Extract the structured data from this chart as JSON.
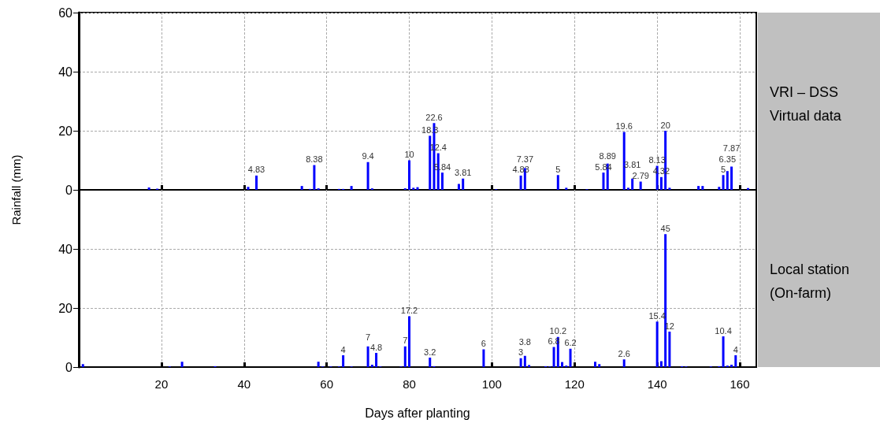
{
  "chart_data": [
    {
      "type": "bar",
      "annotations": [
        "VRI – DSS Virtual data"
      ],
      "ylabel": "Rainfall (mm)",
      "color": "#0000ff",
      "x": [
        17,
        19,
        41,
        43,
        54,
        56,
        57,
        58,
        63,
        64,
        66,
        70,
        71,
        79,
        80,
        81,
        82,
        85,
        86,
        87,
        88,
        92,
        93,
        101,
        107,
        108,
        116,
        118,
        123,
        127,
        128,
        132,
        133,
        134,
        136,
        140,
        141,
        142,
        143,
        150,
        151,
        155,
        156,
        157,
        158,
        162
      ],
      "values": [
        0.8,
        0.4,
        1.0,
        4.83,
        1.3,
        0.3,
        8.38,
        0.5,
        0.3,
        0.3,
        1.3,
        9.4,
        0.5,
        0.5,
        10,
        0.7,
        0.9,
        18.3,
        22.6,
        12.4,
        5.84,
        2.0,
        3.81,
        0.2,
        4.83,
        7.37,
        5,
        0.7,
        0.2,
        5.84,
        8.89,
        19.6,
        0.7,
        3.81,
        2.79,
        8.13,
        4.32,
        20,
        0.7,
        1.3,
        1.3,
        1.0,
        5,
        6.35,
        7.87,
        0.6
      ],
      "value_labels": [
        null,
        null,
        null,
        "4.83",
        null,
        null,
        "8.38",
        null,
        null,
        null,
        null,
        "9.4",
        null,
        null,
        "10",
        null,
        null,
        "18.3",
        "22.6",
        "12.4",
        "5.84",
        null,
        "3.81",
        null,
        "4.83",
        "7.37",
        "5",
        null,
        null,
        "5.84",
        "8.89",
        "19.6",
        null,
        "3.81",
        "2.79",
        "8.13",
        "4.32",
        "20",
        null,
        null,
        null,
        null,
        "5",
        "6.35",
        "7.87",
        null
      ],
      "xlim": [
        0,
        164
      ],
      "xticks": [
        20,
        40,
        60,
        80,
        100,
        120,
        140,
        160
      ],
      "ylim": [
        0,
        60
      ],
      "yticks": [
        0,
        20,
        40,
        60
      ],
      "grid": true,
      "tick_labels": "y"
    },
    {
      "type": "bar",
      "annotations": [
        "Local station (On-farm)"
      ],
      "xlabel": "Days after planting",
      "color": "#0000ff",
      "x": [
        1,
        22,
        25,
        33,
        58,
        59,
        61,
        63,
        64,
        66,
        70,
        71,
        72,
        73,
        78,
        79,
        80,
        85,
        86,
        98,
        107,
        108,
        109,
        113,
        114,
        115,
        116,
        117,
        118,
        119,
        125,
        126,
        132,
        140,
        141,
        142,
        143,
        146,
        147,
        153,
        155,
        156,
        157,
        158,
        159
      ],
      "values": [
        1.0,
        0.2,
        1.8,
        0.3,
        1.8,
        0.2,
        0.2,
        0.2,
        4,
        0.2,
        7,
        0.8,
        4.8,
        0.2,
        0.2,
        7,
        17.2,
        3.2,
        0.3,
        6,
        3,
        3.8,
        0.7,
        0.3,
        0.2,
        6.8,
        10.2,
        1.7,
        0.5,
        6.2,
        1.8,
        1.0,
        2.6,
        15.4,
        2.0,
        45,
        12,
        0.3,
        0.2,
        0.2,
        0.3,
        10.4,
        0.5,
        0.8,
        4
      ],
      "value_labels": [
        null,
        null,
        null,
        null,
        null,
        null,
        null,
        null,
        "4",
        null,
        "7",
        null,
        "4.8",
        null,
        null,
        "7",
        "17.2",
        "3.2",
        null,
        "6",
        "3",
        "3.8",
        null,
        null,
        null,
        "6.8",
        "10.2",
        null,
        null,
        "6.2",
        null,
        null,
        "2.6",
        "15.4",
        null,
        "45",
        "12",
        null,
        null,
        null,
        null,
        "10.4",
        null,
        null,
        "4"
      ],
      "xlim": [
        0,
        164
      ],
      "xticks": [
        20,
        40,
        60,
        80,
        100,
        120,
        140,
        160
      ],
      "ylim": [
        0,
        60
      ],
      "yticks": [
        0,
        20,
        40
      ],
      "grid": true
    }
  ]
}
